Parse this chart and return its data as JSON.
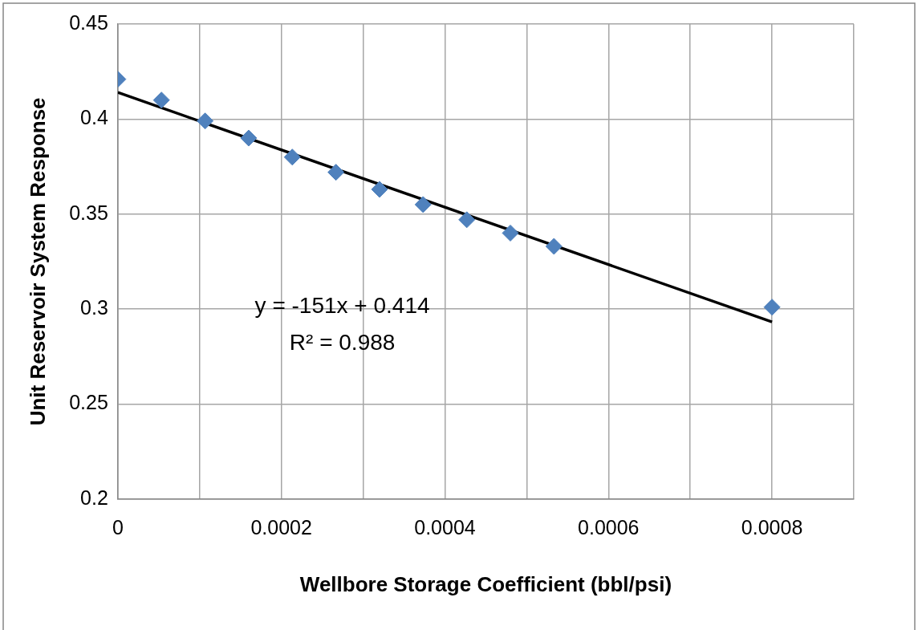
{
  "chart_data": {
    "type": "scatter",
    "xlabel": "Wellbore Storage Coefficient (bbl/psi)",
    "ylabel": "Unit Reservoir System Response",
    "series": [
      {
        "type": "scatter",
        "color": "#4f81bd",
        "marker": "diamond",
        "x": [
          0,
          5.33e-05,
          0.0001067,
          0.00016,
          0.0002133,
          0.0002667,
          0.00032,
          0.0003733,
          0.0004267,
          0.00048,
          0.0005333,
          0.0008
        ],
        "values": [
          0.421,
          0.41,
          0.399,
          0.39,
          0.38,
          0.372,
          0.363,
          0.355,
          0.347,
          0.34,
          0.333,
          0.301
        ]
      },
      {
        "type": "line",
        "color": "#000000",
        "marker": "none",
        "x": [
          0,
          0.0008
        ],
        "values": [
          0.414,
          0.2932
        ]
      }
    ],
    "xlim": [
      0,
      0.0009
    ],
    "xticks": [
      0,
      {
        "value": 0.0001,
        "label": null
      },
      0.0002,
      {
        "value": 0.0003,
        "label": null
      },
      0.0004,
      {
        "value": 0.0005,
        "label": null
      },
      0.0006,
      {
        "value": 0.0007,
        "label": null
      },
      0.0008,
      {
        "value": 0.0009,
        "label": null
      }
    ],
    "ylim": [
      0.2,
      0.45
    ],
    "yticks": [
      0.2,
      0.25,
      0.3,
      0.35,
      0.4,
      0.45
    ],
    "grid": true,
    "legend": false,
    "annotations": [
      "y = -151x + 0.414",
      "R² = 0.988"
    ]
  }
}
